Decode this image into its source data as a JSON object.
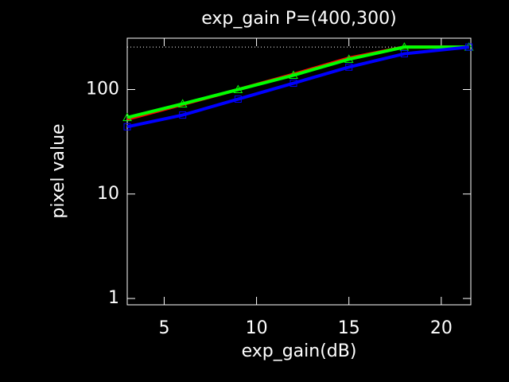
{
  "chart_data": {
    "type": "line",
    "title": "exp_gain P=(400,300)",
    "x_label": "exp_gain(dB)",
    "y_label": "pixel value",
    "x": [
      3,
      6,
      9,
      12,
      15,
      18,
      21.5
    ],
    "series": [
      {
        "name": "red",
        "color": "#ff0000",
        "marker": "none",
        "values": [
          52,
          72,
          100,
          140,
          200,
          255,
          255
        ]
      },
      {
        "name": "green",
        "color": "#00ff00",
        "marker": "triangle",
        "values": [
          54,
          73,
          100,
          137,
          195,
          255,
          255
        ]
      },
      {
        "name": "blue",
        "color": "#0000ff",
        "marker": "square",
        "values": [
          44,
          57,
          81,
          115,
          164,
          220,
          255
        ]
      }
    ],
    "hline": 255,
    "log_y": true,
    "xlim": [
      3,
      21.6
    ],
    "xticks": [
      5,
      10,
      15,
      20
    ],
    "ylim": [
      0.87,
      310
    ],
    "yticks": [
      1,
      10,
      100
    ]
  }
}
